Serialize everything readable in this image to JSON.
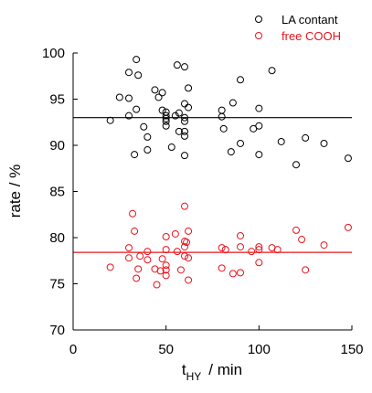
{
  "chart_data": {
    "type": "scatter",
    "xlabel_main": "t",
    "xlabel_sub": "HY",
    "xlabel_rest": "/ min",
    "ylabel": "rate / %",
    "xlim": [
      0,
      150
    ],
    "ylim": [
      70,
      100
    ],
    "xticks": [
      0,
      50,
      100,
      150
    ],
    "yticks": [
      70,
      75,
      80,
      85,
      90,
      95,
      100
    ],
    "grid": false,
    "legend_position": "top-right",
    "series": [
      {
        "name": "LA contant",
        "color": "#000000",
        "marker": "open-circle",
        "mean": 93.0,
        "points": [
          [
            20,
            92.7
          ],
          [
            25,
            95.2
          ],
          [
            30,
            93.2
          ],
          [
            30,
            95.1
          ],
          [
            30,
            97.9
          ],
          [
            33,
            89.0
          ],
          [
            34,
            93.9
          ],
          [
            34,
            99.3
          ],
          [
            35,
            97.6
          ],
          [
            38,
            92.0
          ],
          [
            40,
            89.5
          ],
          [
            40,
            90.9
          ],
          [
            44,
            96.0
          ],
          [
            46,
            95.2
          ],
          [
            48,
            95.7
          ],
          [
            48,
            93.8
          ],
          [
            50,
            93.6
          ],
          [
            50,
            93.2
          ],
          [
            50,
            92.6
          ],
          [
            50,
            92.1
          ],
          [
            50,
            92.9
          ],
          [
            53,
            89.8
          ],
          [
            55,
            93.2
          ],
          [
            56,
            98.7
          ],
          [
            57,
            91.5
          ],
          [
            57,
            93.5
          ],
          [
            60,
            98.5
          ],
          [
            60,
            94.5
          ],
          [
            60,
            92.6
          ],
          [
            60,
            93.0
          ],
          [
            60,
            91.5
          ],
          [
            60,
            91.0
          ],
          [
            60,
            88.9
          ],
          [
            62,
            96.2
          ],
          [
            62,
            94.1
          ],
          [
            80,
            93.8
          ],
          [
            80,
            93.1
          ],
          [
            81,
            91.8
          ],
          [
            85,
            89.3
          ],
          [
            86,
            94.6
          ],
          [
            90,
            90.2
          ],
          [
            90,
            97.1
          ],
          [
            97,
            91.8
          ],
          [
            100,
            92.1
          ],
          [
            100,
            94.0
          ],
          [
            100,
            89.0
          ],
          [
            107,
            98.1
          ],
          [
            112,
            90.4
          ],
          [
            120,
            87.9
          ],
          [
            125,
            90.8
          ],
          [
            135,
            90.2
          ],
          [
            148,
            88.6
          ]
        ]
      },
      {
        "name": "free COOH",
        "color": "#e8141c",
        "marker": "open-circle",
        "mean": 78.4,
        "points": [
          [
            20,
            76.8
          ],
          [
            30,
            78.9
          ],
          [
            30,
            77.8
          ],
          [
            32,
            82.6
          ],
          [
            33,
            80.7
          ],
          [
            34,
            75.6
          ],
          [
            35,
            76.6
          ],
          [
            36,
            78.0
          ],
          [
            40,
            78.5
          ],
          [
            40,
            77.6
          ],
          [
            44,
            76.6
          ],
          [
            45,
            74.9
          ],
          [
            47,
            76.4
          ],
          [
            48,
            77.7
          ],
          [
            50,
            75.9
          ],
          [
            50,
            76.5
          ],
          [
            50,
            77.0
          ],
          [
            50,
            78.7
          ],
          [
            50,
            80.1
          ],
          [
            55,
            80.4
          ],
          [
            56,
            78.5
          ],
          [
            58,
            76.5
          ],
          [
            60,
            83.4
          ],
          [
            60,
            79.6
          ],
          [
            60,
            79.0
          ],
          [
            60,
            78.0
          ],
          [
            61,
            79.5
          ],
          [
            62,
            80.7
          ],
          [
            62,
            77.8
          ],
          [
            62,
            75.4
          ],
          [
            80,
            76.7
          ],
          [
            80,
            78.9
          ],
          [
            82,
            78.7
          ],
          [
            86,
            76.1
          ],
          [
            90,
            80.2
          ],
          [
            90,
            79.0
          ],
          [
            90,
            76.2
          ],
          [
            96,
            78.5
          ],
          [
            100,
            79.0
          ],
          [
            100,
            78.7
          ],
          [
            100,
            77.3
          ],
          [
            107,
            78.9
          ],
          [
            110,
            78.7
          ],
          [
            120,
            80.8
          ],
          [
            123,
            79.8
          ],
          [
            125,
            76.5
          ],
          [
            135,
            79.2
          ],
          [
            148,
            81.1
          ]
        ]
      }
    ]
  }
}
